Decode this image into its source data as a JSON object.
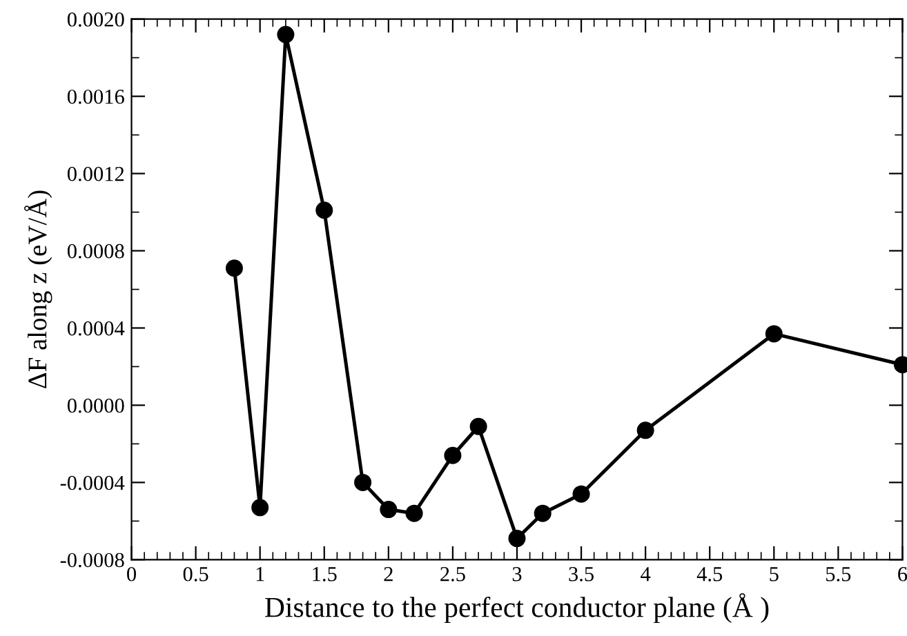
{
  "chart_data": {
    "type": "line",
    "xlabel": "Distance to the perfect conductor plane (Å )",
    "ylabel": "ΔF along z (eV/Å)",
    "x": [
      0.8,
      1.0,
      1.2,
      1.5,
      1.8,
      2.0,
      2.2,
      2.5,
      2.7,
      3.0,
      3.2,
      3.5,
      4.0,
      5.0,
      6.0
    ],
    "series": [
      {
        "color": "#000000",
        "values": [
          0.00071,
          -0.00053,
          0.00192,
          0.00101,
          -0.0004,
          -0.00054,
          -0.00056,
          -0.00026,
          -0.00011,
          -0.00069,
          -0.00056,
          -0.00046,
          -0.00013,
          0.00037,
          0.00021
        ]
      }
    ],
    "xlim": [
      0,
      6
    ],
    "xticks": [
      0,
      0.5,
      1,
      1.5,
      2,
      2.5,
      3,
      3.5,
      4,
      4.5,
      5,
      5.5,
      6
    ],
    "ylim": [
      -0.0008,
      0.002
    ],
    "yticks": [
      {
        "value": -0.0008,
        "label": "-0.0008"
      },
      {
        "value": -0.0004,
        "label": "-0.0004"
      },
      {
        "value": 0,
        "label": "0.0000"
      },
      {
        "value": 0.0004,
        "label": "0.0004"
      },
      {
        "value": 0.0008,
        "label": "0.0008"
      },
      {
        "value": 0.0012,
        "label": "0.0012"
      },
      {
        "value": 0.0016,
        "label": "0.0016"
      },
      {
        "value": 0.002,
        "label": "0.0020"
      }
    ],
    "grid": false,
    "legend": false,
    "marker": "circle",
    "line_style": "solid"
  }
}
